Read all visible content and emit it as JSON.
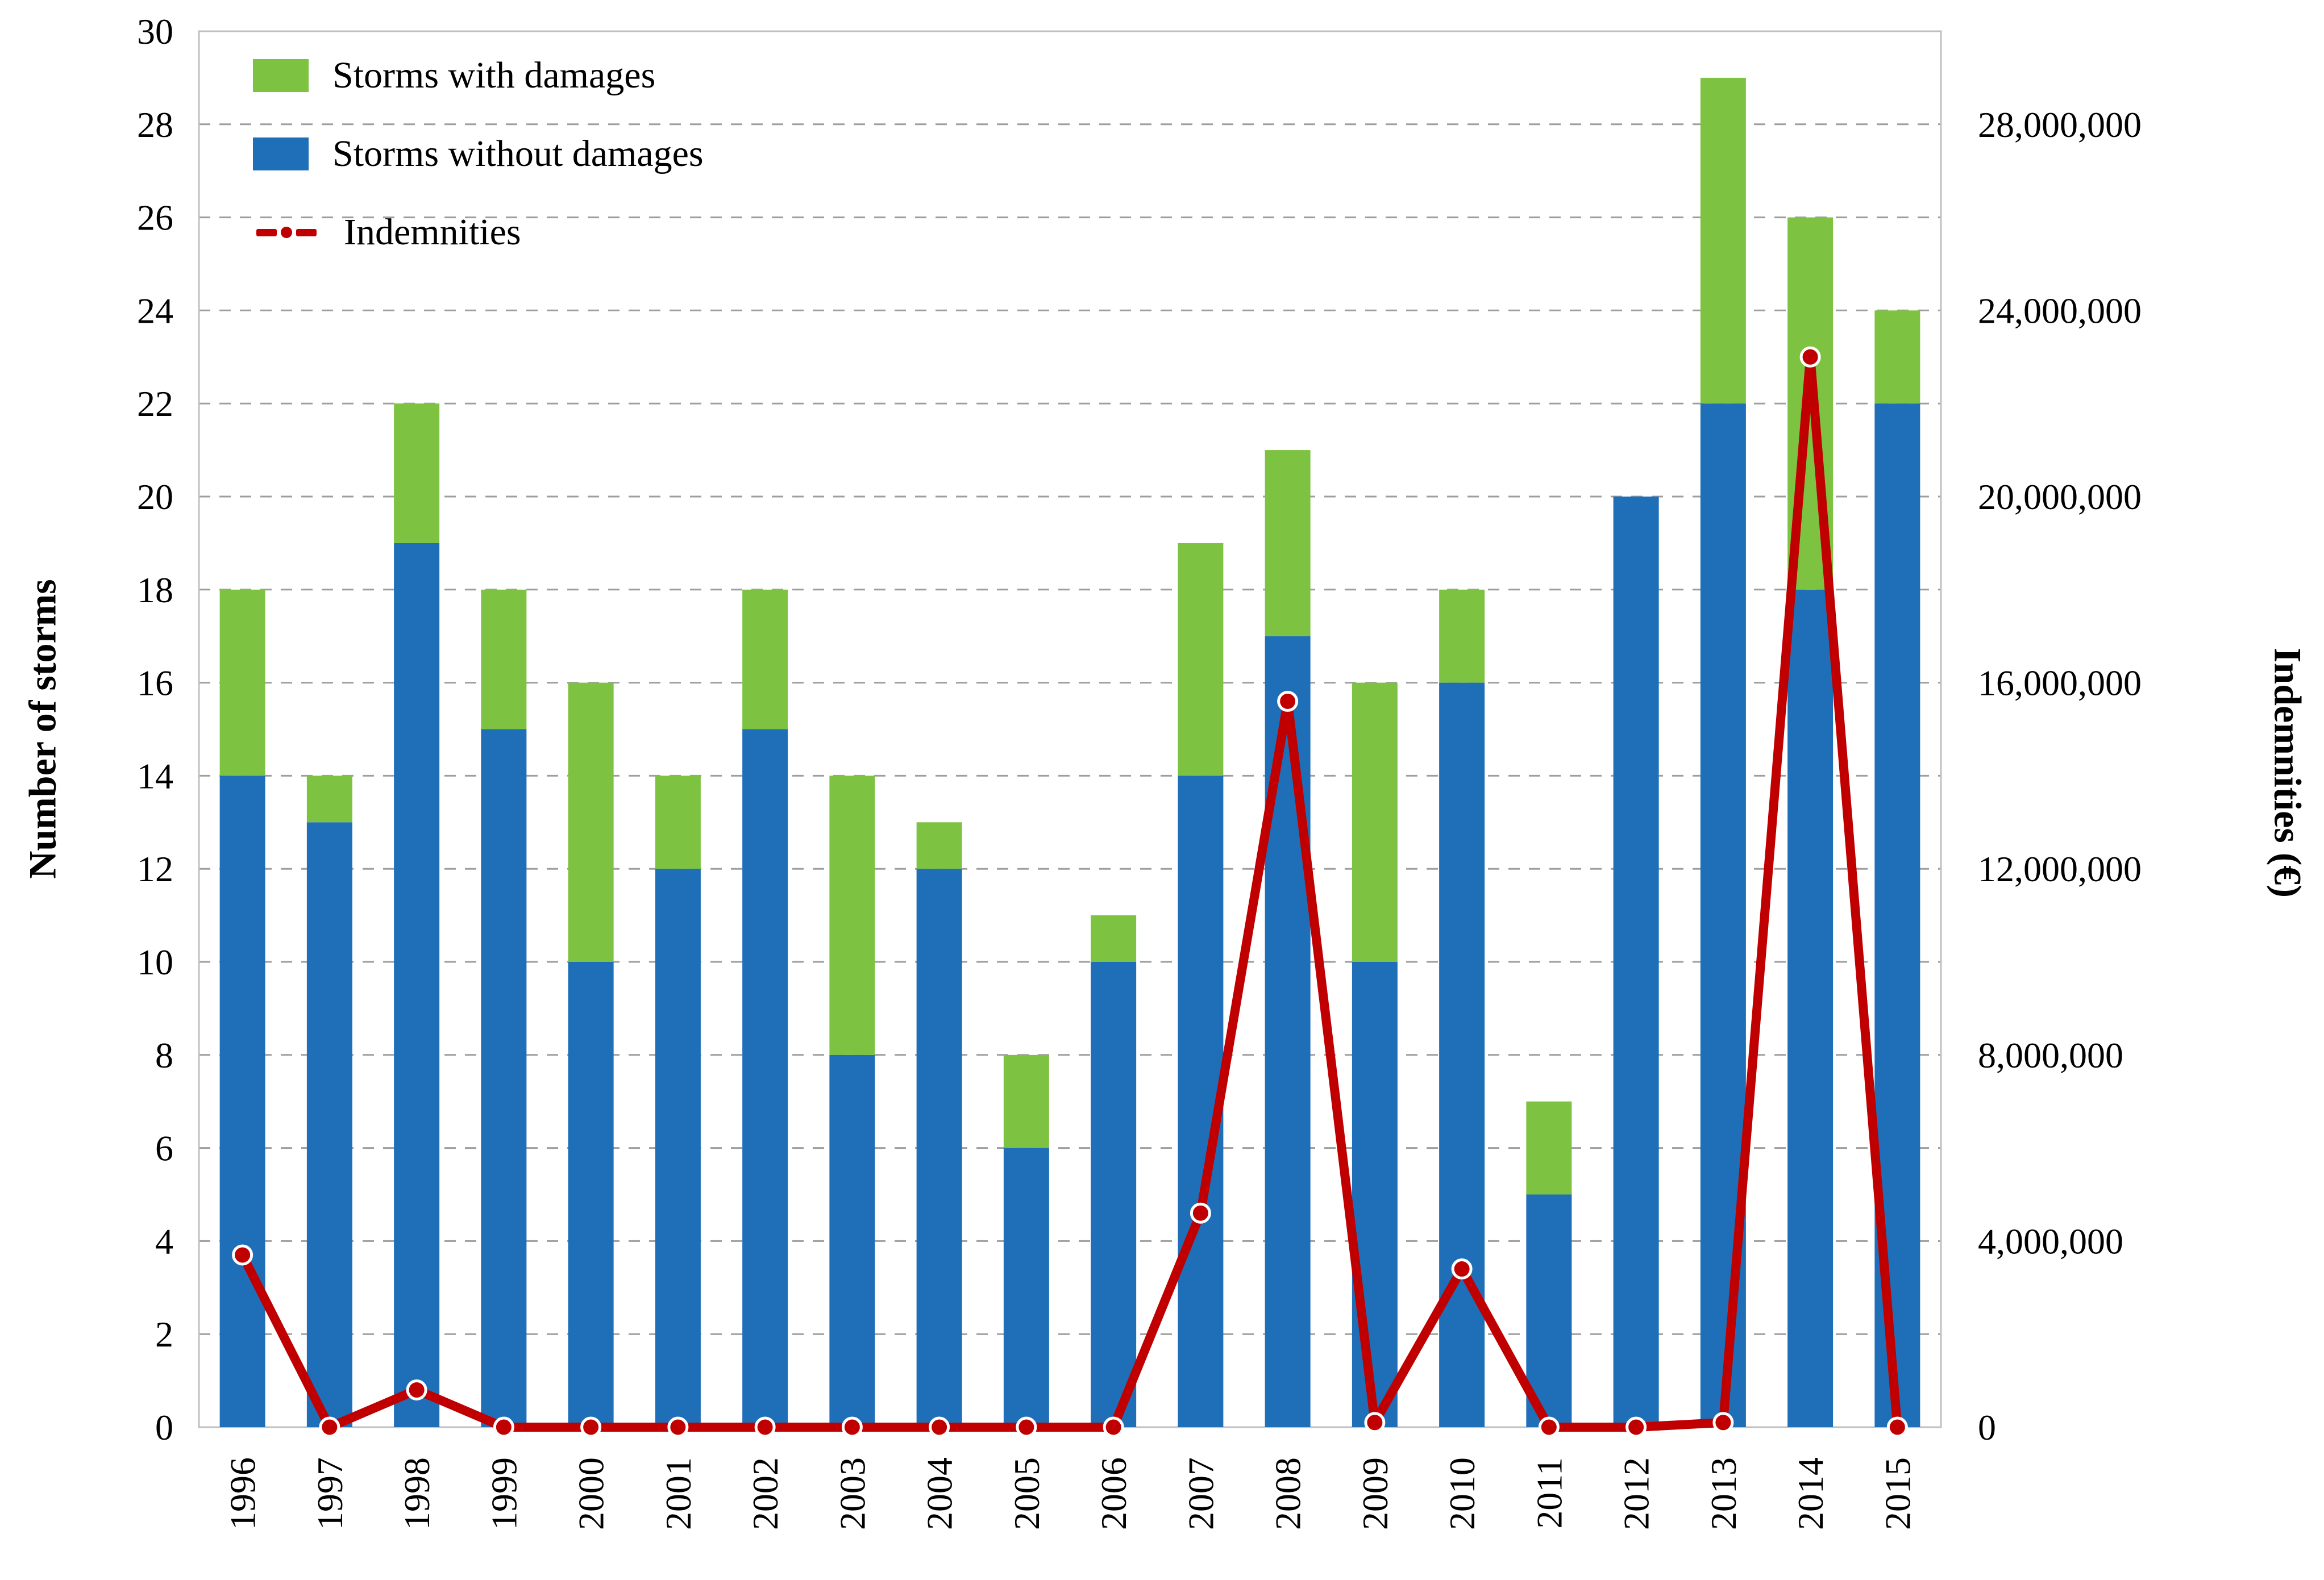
{
  "chart_data": {
    "type": "combo-stacked-bar-line",
    "title": "",
    "categories": [
      "1996",
      "1997",
      "1998",
      "1999",
      "2000",
      "2001",
      "2002",
      "2003",
      "2004",
      "2005",
      "2006",
      "2007",
      "2008",
      "2009",
      "2010",
      "2011",
      "2012",
      "2013",
      "2014",
      "2015"
    ],
    "series": [
      {
        "name": "Storms without damages",
        "type": "bar",
        "stack_position": "bottom",
        "color": "#1E6FB8",
        "values": [
          14,
          13,
          19,
          15,
          10,
          12,
          15,
          8,
          12,
          6,
          10,
          14,
          17,
          10,
          16,
          5,
          20,
          22,
          18,
          22
        ]
      },
      {
        "name": "Storms with damages",
        "type": "bar",
        "stack_position": "top",
        "color": "#7EC242",
        "values": [
          4,
          1,
          3,
          3,
          6,
          2,
          3,
          6,
          1,
          2,
          1,
          5,
          4,
          6,
          2,
          2,
          0,
          7,
          8,
          2
        ]
      },
      {
        "name": "Indemnities",
        "type": "line",
        "axis": "right",
        "color": "#C00000",
        "marker": "circle-white-ring",
        "values": [
          3700000,
          0,
          800000,
          0,
          0,
          0,
          0,
          0,
          0,
          0,
          0,
          4600000,
          15600000,
          100000,
          3400000,
          0,
          0,
          100000,
          23000000,
          0
        ]
      }
    ],
    "left_axis": {
      "label": "Number of storms",
      "min": 0,
      "max": 30,
      "tick_step": 2
    },
    "right_axis": {
      "label": "Indemnities (€)",
      "min": 0,
      "max": 30000000,
      "label_step": 4000000
    },
    "grid": "horizontal-dashed",
    "legend_position": "inside-top-left"
  },
  "legend": {
    "items": [
      {
        "label": "Storms with damages",
        "swatch": "green-rect"
      },
      {
        "label": "Storms without damages",
        "swatch": "blue-rect"
      },
      {
        "label": "Indemnities",
        "swatch": "red-dash-dot-line"
      }
    ]
  },
  "axes": {
    "left_title": "Number of storms",
    "right_title": "Indemnities (€)",
    "left_ticks": [
      "30",
      "28",
      "26",
      "24",
      "22",
      "20",
      "18",
      "16",
      "14",
      "12",
      "10",
      "8",
      "6",
      "4",
      "2",
      "0"
    ],
    "right_ticks": [
      "28,000,000",
      "24,000,000",
      "20,000,000",
      "16,000,000",
      "12,000,000",
      "8,000,000",
      "4,000,000",
      "0"
    ]
  },
  "colors": {
    "bar_blue": "#1E6FB8",
    "bar_green": "#7EC242",
    "line_red": "#C00000",
    "gridline": "#9E9E9E",
    "frame": "#C0C0C0",
    "text": "#000000",
    "background": "#FFFFFF"
  }
}
